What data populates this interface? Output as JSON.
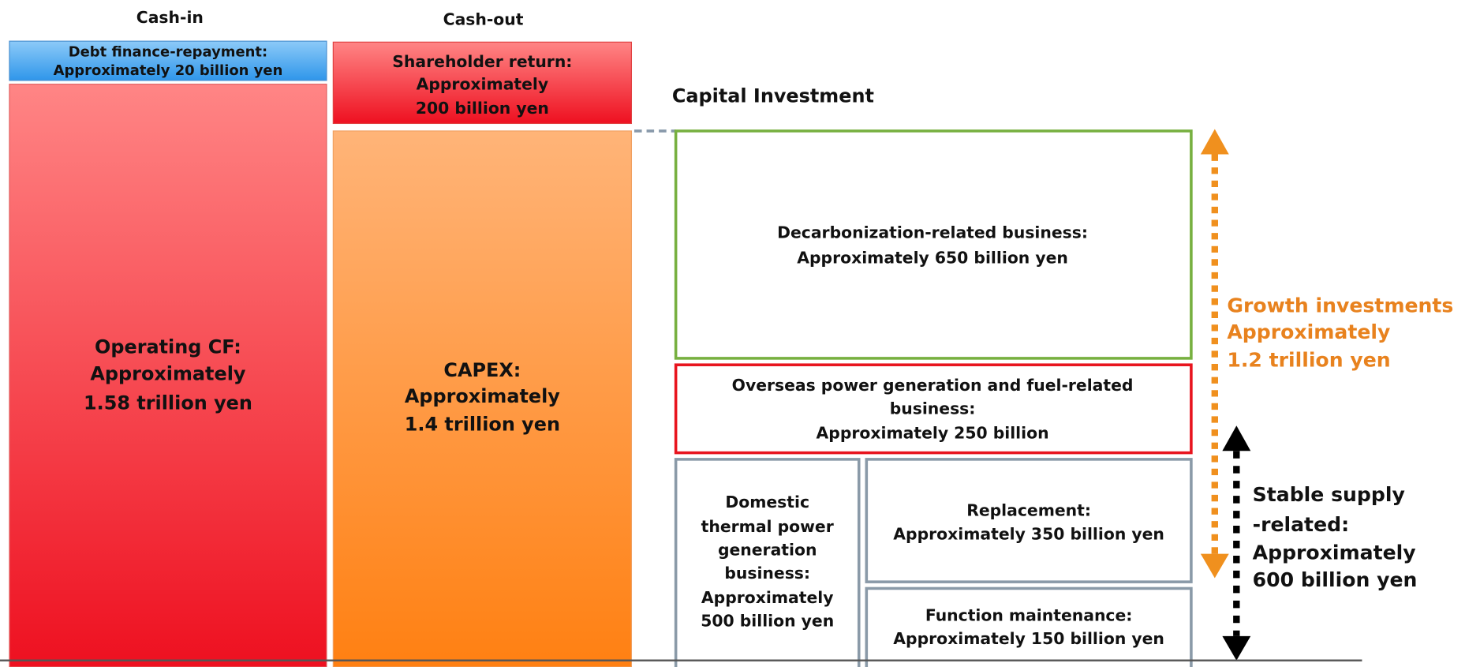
{
  "columns": {
    "cash_in": "Cash-in",
    "cash_out": "Cash-out",
    "capital_investment": "Capital Investment"
  },
  "cash_in": {
    "debt": [
      "Debt finance-repayment:",
      "Approximately 20 billion yen"
    ],
    "operating_cf": [
      "Operating CF:",
      "Approximately",
      "1.58 trillion yen"
    ]
  },
  "cash_out": {
    "shareholder_return": [
      "Shareholder return:",
      "Approximately",
      "200 billion yen"
    ],
    "capex": [
      "CAPEX:",
      "Approximately",
      "1.4 trillion yen"
    ]
  },
  "investment": {
    "decarbonization": [
      "Decarbonization-related business:",
      "Approximately 650 billion yen"
    ],
    "overseas": [
      "Overseas power generation and fuel-related",
      "business:",
      "Approximately 250 billion"
    ],
    "domestic": [
      "Domestic",
      "thermal power",
      "generation",
      "business:",
      "Approximately",
      "500 billion yen"
    ],
    "replacement": [
      "Replacement:",
      "Approximately 350 billion yen"
    ],
    "function_maintenance": [
      "Function maintenance:",
      "Approximately 150 billion yen"
    ]
  },
  "brackets": {
    "growth": [
      "Growth investments",
      "Approximately",
      "1.2 trillion yen"
    ],
    "stable": [
      "Stable supply",
      "-related:",
      "Approximately",
      "600 billion yen"
    ]
  }
}
